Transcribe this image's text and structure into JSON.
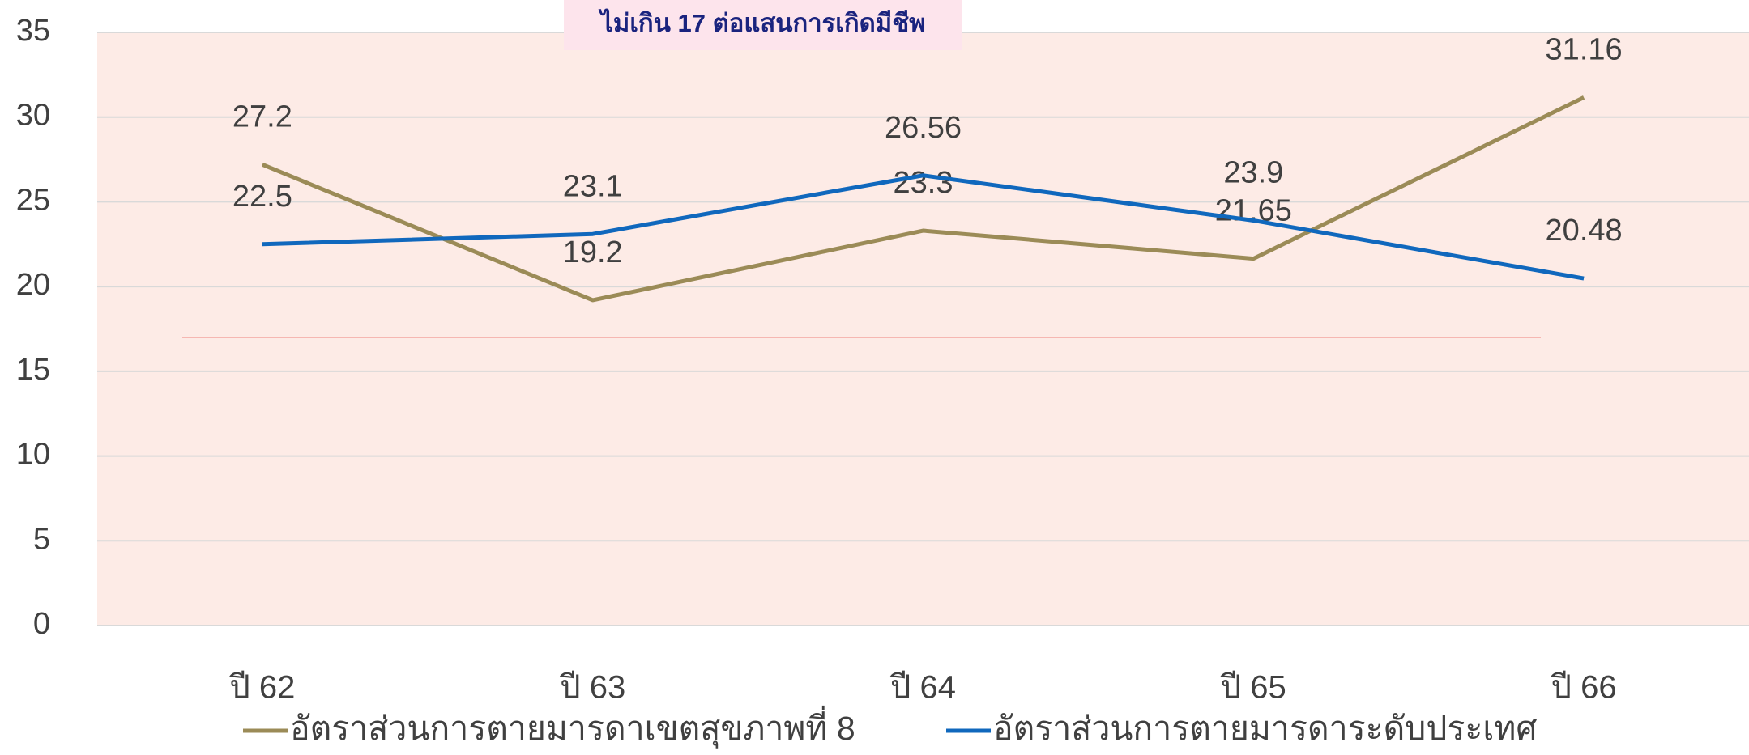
{
  "chart_data": {
    "type": "line",
    "annotation": "ไม่เกิน 17 ต่อแสนการเกิดมีชีพ",
    "target": 17,
    "target_color": "#f4a6a0",
    "categories": [
      "ปี 62",
      "ปี 63",
      "ปี 64",
      "ปี 65",
      "ปี 66"
    ],
    "series": [
      {
        "name": "อัตราส่วนการตายมารดาเขตสุขภาพที่ 8",
        "color": "#9b8b57",
        "values": [
          27.2,
          19.2,
          23.3,
          21.65,
          31.16
        ]
      },
      {
        "name": "อัตราส่วนการตายมารดาระดับประเทศ",
        "color": "#1068bd",
        "values": [
          22.5,
          23.1,
          26.56,
          23.9,
          20.48
        ]
      }
    ],
    "ylim": [
      0,
      35
    ],
    "yticks": [
      0,
      5,
      10,
      15,
      20,
      25,
      30,
      35
    ],
    "grid": true
  }
}
